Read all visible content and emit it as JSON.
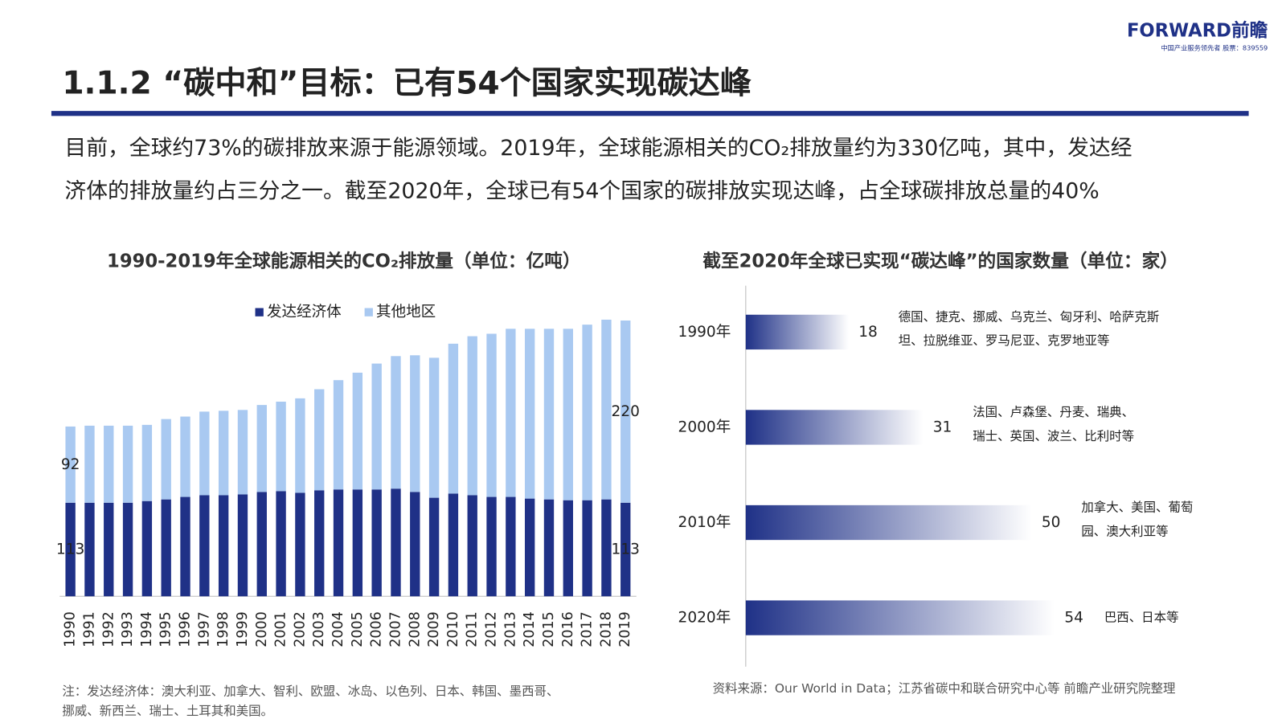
{
  "header": {
    "logo": "FORWARD前瞻",
    "logo_sub": "中国产业服务领先者 股票：839559",
    "title": "1.1.2 “碳中和”目标：已有54个国家实现碳达峰"
  },
  "intro": [
    "目前，全球约73%的碳排放来源于能源领域。2019年，全球能源相关的CO₂排放量约为330亿吨，其中，发达经",
    "济体的排放量约占三分之一。截至2020年，全球已有54个国家的碳排放实现达峰，占全球碳排放总量的40%"
  ],
  "chart_data": [
    {
      "type": "stacked_bar",
      "title": "1990-2019年全球能源相关的CO₂排放量（单位：亿吨）",
      "legend": "top",
      "categories": [
        "1990",
        "1991",
        "1992",
        "1993",
        "1994",
        "1995",
        "1996",
        "1997",
        "1998",
        "1999",
        "2000",
        "2001",
        "2002",
        "2003",
        "2004",
        "2005",
        "2006",
        "2007",
        "2008",
        "2009",
        "2010",
        "2011",
        "2012",
        "2013",
        "2014",
        "2015",
        "2016",
        "2017",
        "2018",
        "2019"
      ],
      "series": [
        {
          "name": "发达经济体",
          "color": "#1f3187",
          "values": [
            113,
            113,
            113,
            113,
            115,
            117,
            120,
            122,
            122,
            123,
            126,
            127,
            125,
            128,
            129,
            129,
            129,
            130,
            126,
            119,
            124,
            122,
            120,
            120,
            118,
            117,
            116,
            116,
            117,
            113
          ],
          "value_labels": [
            "113",
            null,
            null,
            null,
            null,
            null,
            null,
            null,
            null,
            null,
            null,
            null,
            null,
            null,
            null,
            null,
            null,
            null,
            null,
            null,
            null,
            null,
            null,
            null,
            null,
            null,
            null,
            null,
            null,
            "113"
          ]
        },
        {
          "name": "其他地区",
          "color": "#a9c9f1",
          "values": [
            92,
            93,
            93,
            93,
            92,
            97,
            97,
            101,
            102,
            102,
            105,
            108,
            114,
            122,
            132,
            141,
            152,
            160,
            165,
            169,
            181,
            192,
            197,
            203,
            205,
            206,
            207,
            212,
            217,
            220
          ],
          "value_labels": [
            "92",
            null,
            null,
            null,
            null,
            null,
            null,
            null,
            null,
            null,
            null,
            null,
            null,
            null,
            null,
            null,
            null,
            null,
            null,
            null,
            null,
            null,
            null,
            null,
            null,
            null,
            null,
            null,
            null,
            "220"
          ]
        }
      ]
    },
    {
      "type": "gradient_hbar",
      "title": "截至2020年全球已实现“碳达峰”的国家数量（单位：家）",
      "color": "#1f3187",
      "categories": [
        "1990年",
        "2000年",
        "2010年",
        "2020年"
      ],
      "values": [
        18,
        31,
        50,
        54
      ],
      "annotations": [
        [
          "德国、捷克、挪威、乌克兰、匈牙利、哈萨克斯",
          "坦、拉脱维亚、罗马尼亚、克罗地亚等"
        ],
        [
          "法国、卢森堡、丹麦、瑞典、",
          "瑞士、英国、波兰、比利时等"
        ],
        [
          "加拿大、美国、葡萄",
          "园、澳大利亚等"
        ],
        [
          "巴西、日本等"
        ]
      ]
    }
  ],
  "notes": [
    "注：发达经济体：澳大利亚、加拿大、智利、欧盟、冰岛、以色列、日本、韩国、墨西哥、",
    "挪威、新西兰、瑞士、土耳其和美国。"
  ],
  "source": "资料来源：Our World in Data；江苏省碳中和联合研究中心等 前瞻产业研究院整理"
}
